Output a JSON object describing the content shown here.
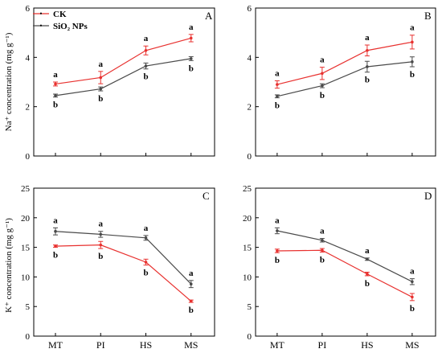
{
  "colors": {
    "ck": "#e8312f",
    "sio2": "#4a4a4a",
    "axis": "#000000"
  },
  "legend": {
    "ck_label": "CK",
    "sio2_label": "SiO₂ NPs",
    "placement": "top-left of panel A"
  },
  "axis_titles": {
    "na_ylabel": "Na⁺ concentration (mg g⁻¹)",
    "k_ylabel": "K⁺ concentration (mg g⁻¹)"
  },
  "chart_data": [
    {
      "type": "line",
      "panel": "A",
      "title": "",
      "xlabel": "",
      "ylabel": "Na⁺ concentration (mg g⁻¹)",
      "categories": [
        "MT",
        "PI",
        "HS",
        "MS"
      ],
      "ylim": [
        0,
        6
      ],
      "yticks": [
        0,
        2,
        4,
        6
      ],
      "series": [
        {
          "name": "CK",
          "values": [
            2.92,
            3.18,
            4.28,
            4.78
          ],
          "errors": [
            0.08,
            0.25,
            0.18,
            0.15
          ],
          "letters": [
            "a",
            "a",
            "a",
            "a"
          ]
        },
        {
          "name": "SiO₂ NPs",
          "values": [
            2.45,
            2.72,
            3.65,
            3.95
          ],
          "errors": [
            0.06,
            0.08,
            0.12,
            0.08
          ],
          "letters": [
            "b",
            "b",
            "b",
            "b"
          ]
        }
      ]
    },
    {
      "type": "line",
      "panel": "B",
      "title": "",
      "xlabel": "",
      "ylabel": "",
      "categories": [
        "MT",
        "PI",
        "HS",
        "MS"
      ],
      "ylim": [
        0,
        6
      ],
      "yticks": [
        0,
        2,
        4,
        6
      ],
      "series": [
        {
          "name": "CK",
          "values": [
            2.9,
            3.35,
            4.28,
            4.62
          ],
          "errors": [
            0.15,
            0.25,
            0.22,
            0.28
          ],
          "letters": [
            "a",
            "a",
            "a",
            "a"
          ]
        },
        {
          "name": "SiO₂ NPs",
          "values": [
            2.42,
            2.85,
            3.62,
            3.82
          ],
          "errors": [
            0.06,
            0.08,
            0.22,
            0.2
          ],
          "letters": [
            "b",
            "b",
            "b",
            "b"
          ]
        }
      ]
    },
    {
      "type": "line",
      "panel": "C",
      "title": "",
      "xlabel": "",
      "ylabel": "K⁺ concentration (mg g⁻¹)",
      "categories": [
        "MT",
        "PI",
        "HS",
        "MS"
      ],
      "ylim": [
        0,
        25
      ],
      "yticks": [
        0,
        5,
        10,
        15,
        20,
        25
      ],
      "series": [
        {
          "name": "CK",
          "values": [
            15.2,
            15.4,
            12.5,
            5.9
          ],
          "errors": [
            0.2,
            0.6,
            0.5,
            0.2
          ],
          "letters": [
            "b",
            "b",
            "b",
            "b"
          ]
        },
        {
          "name": "SiO₂ NPs",
          "values": [
            17.7,
            17.2,
            16.6,
            8.8
          ],
          "errors": [
            0.6,
            0.5,
            0.4,
            0.6
          ],
          "letters": [
            "a",
            "a",
            "a",
            "a"
          ]
        }
      ]
    },
    {
      "type": "line",
      "panel": "D",
      "title": "",
      "xlabel": "",
      "ylabel": "",
      "categories": [
        "MT",
        "PI",
        "HS",
        "MS"
      ],
      "ylim": [
        0,
        25
      ],
      "yticks": [
        0,
        5,
        10,
        15,
        20,
        25
      ],
      "series": [
        {
          "name": "CK",
          "values": [
            14.4,
            14.5,
            10.5,
            6.6
          ],
          "errors": [
            0.3,
            0.3,
            0.3,
            0.6
          ],
          "letters": [
            "b",
            "b",
            "b",
            "b"
          ]
        },
        {
          "name": "SiO₂ NPs",
          "values": [
            17.8,
            16.2,
            13.0,
            9.2
          ],
          "errors": [
            0.5,
            0.3,
            0.2,
            0.5
          ],
          "letters": [
            "a",
            "a",
            "a",
            "a"
          ]
        }
      ]
    }
  ]
}
